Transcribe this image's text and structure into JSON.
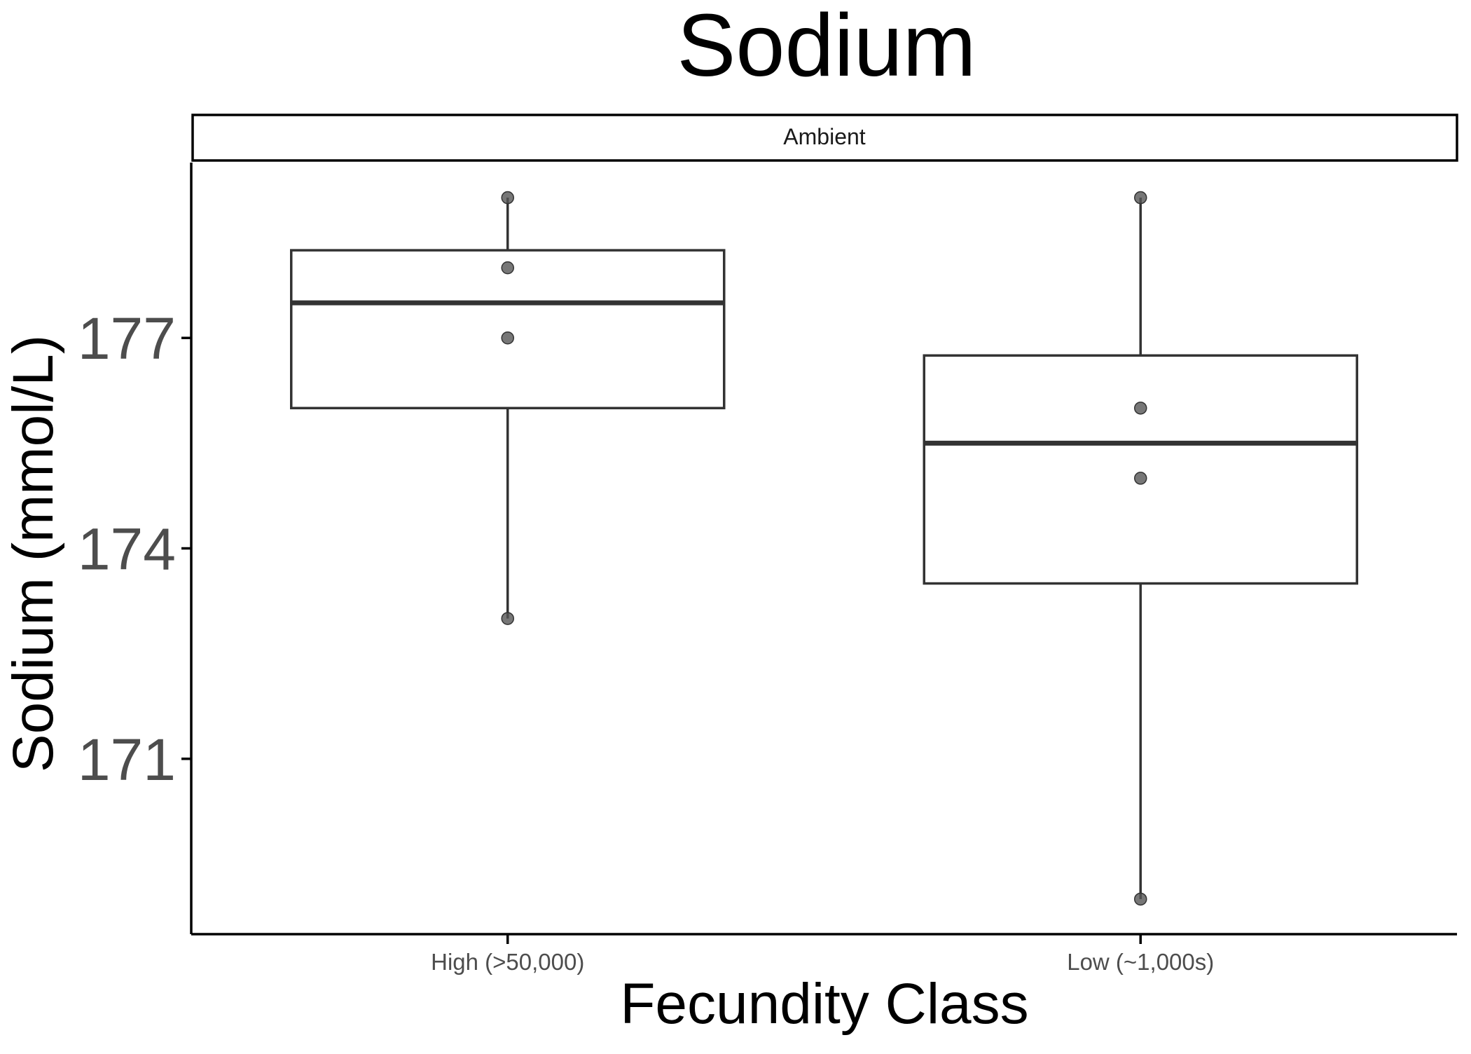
{
  "chart_data": {
    "type": "box",
    "title": "Sodium",
    "facet": "Ambient",
    "xlabel": "Fecundity Class",
    "ylabel": "Sodium (mmol/L)",
    "categories": [
      "High (>50,000)",
      "Low (~1,000s)"
    ],
    "yticks": [
      171,
      174,
      177
    ],
    "ylim": [
      168.5,
      179.5
    ],
    "boxes": [
      {
        "category": "High (>50,000)",
        "min": 173,
        "q1": 176,
        "median": 177.5,
        "q3": 178.25,
        "max": 179
      },
      {
        "category": "Low (~1,000s)",
        "min": 169,
        "q1": 173.5,
        "median": 175.5,
        "q3": 176.75,
        "max": 179
      }
    ],
    "points": [
      {
        "category": "High (>50,000)",
        "values": [
          179,
          178,
          177,
          173
        ]
      },
      {
        "category": "Low (~1,000s)",
        "values": [
          179,
          176,
          175,
          169
        ]
      }
    ],
    "colors": {
      "box_line": "#333333",
      "point": "#555555",
      "axis": "#000000",
      "tick_text": "#4d4d4d"
    }
  }
}
